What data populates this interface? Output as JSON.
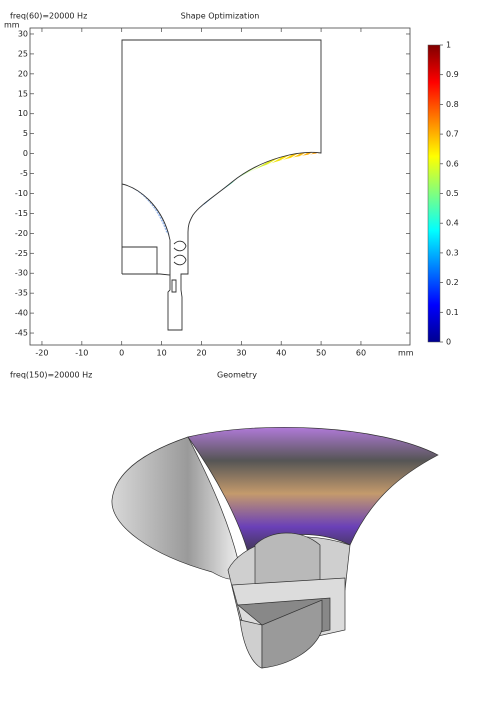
{
  "chart_data": [
    {
      "type": "plot2d",
      "subtitle": "freq(60)=20000 Hz",
      "title": "Shape Optimization",
      "xlabel": "mm",
      "ylabel": "mm",
      "xlim": [
        -23,
        72.3
      ],
      "ylim": [
        -48,
        31.5
      ],
      "xticks": [
        -20,
        -10,
        0,
        10,
        20,
        30,
        40,
        50,
        60
      ],
      "yticks": [
        30,
        25,
        20,
        15,
        10,
        5,
        0,
        -5,
        -10,
        -15,
        -20,
        -25,
        -30,
        -35,
        -40,
        -45
      ],
      "colorbar": {
        "lim": [
          0,
          1
        ],
        "ticks": [
          0,
          0.1,
          0.2,
          0.3,
          0.4,
          0.5,
          0.6,
          0.7,
          0.8,
          0.9,
          1
        ]
      }
    },
    {
      "type": "geometry3d",
      "subtitle": "freq(150)=20000 Hz",
      "title": "Geometry"
    }
  ]
}
